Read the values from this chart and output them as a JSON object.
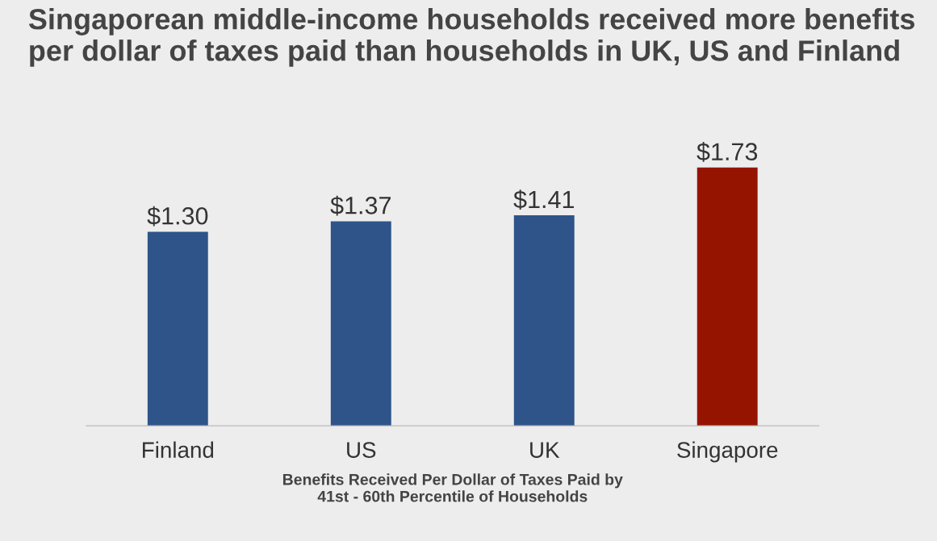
{
  "chart_data": {
    "type": "bar",
    "title": "Singaporean middle-income households received more benefits per dollar of taxes paid than households in UK, US and Finland",
    "xlabel": "Benefits Received Per Dollar of Taxes Paid by\n41st - 60th Percentile of Households",
    "categories": [
      "Finland",
      "US",
      "UK",
      "Singapore"
    ],
    "values": [
      1.3,
      1.37,
      1.41,
      1.73
    ],
    "value_labels": [
      "$1.30",
      "$1.37",
      "$1.41",
      "$1.73"
    ],
    "colors": [
      "#2e5489",
      "#2e5489",
      "#2e5489",
      "#951400"
    ],
    "tick_labels": "x",
    "grid": false,
    "legend": false
  }
}
